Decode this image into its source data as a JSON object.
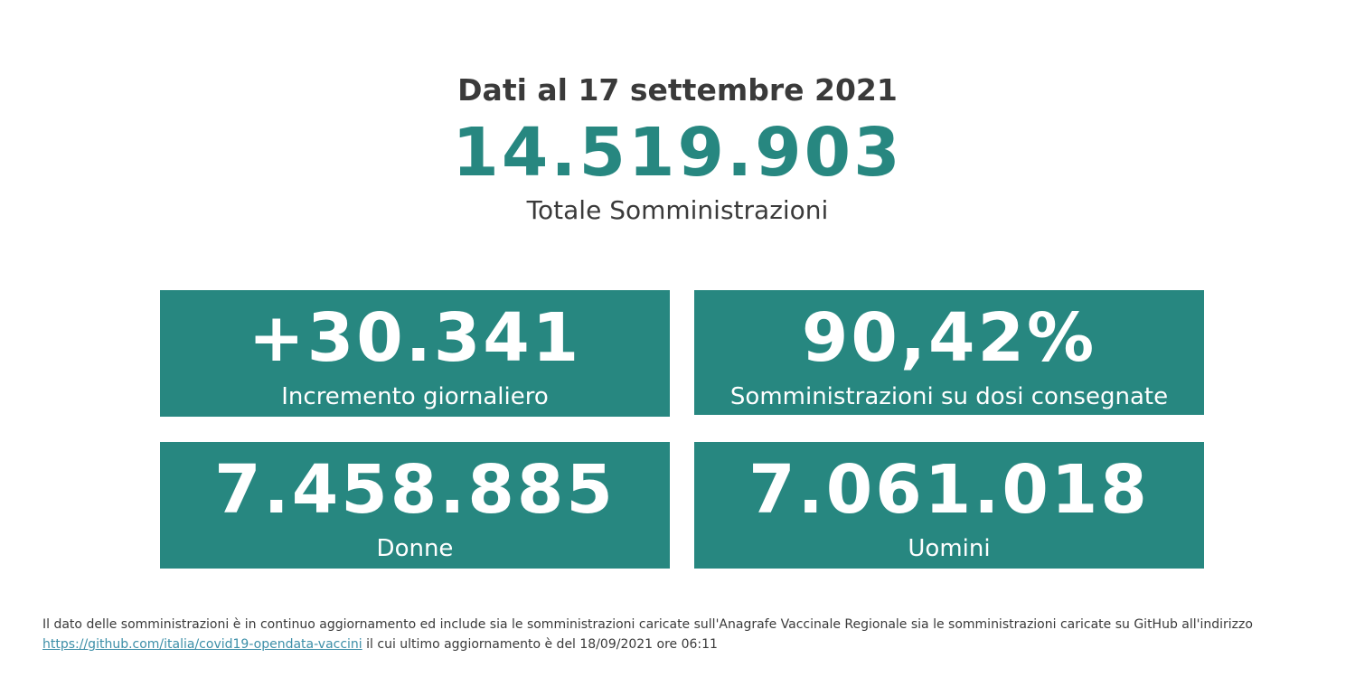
{
  "header": {
    "date_title": "Dati al 17 settembre 2021",
    "total_value": "14.519.903",
    "total_label": "Totale Somministrazioni"
  },
  "cards": {
    "increment": {
      "value": "+30.341",
      "label": "Incremento giornaliero"
    },
    "ratio": {
      "value": "90,42%",
      "label": "Somministrazioni su dosi consegnate"
    },
    "women": {
      "value": "7.458.885",
      "label": "Donne"
    },
    "men": {
      "value": "7.061.018",
      "label": "Uomini"
    }
  },
  "footnote": {
    "text_before": "Il dato delle somministrazioni è in continuo aggiornamento ed include sia le somministrazioni caricate sull'Anagrafe Vaccinale Regionale sia le somministrazioni caricate su GitHub all'indirizzo",
    "link_text": "https://github.com/italia/covid19-opendata-vaccini",
    "text_after": "il cui ultimo aggiornamento è del 18/09/2021 ore 06:11"
  },
  "colors": {
    "accent": "#278780",
    "text": "#3a3a3a",
    "link": "#3d8fa8",
    "background": "#ffffff"
  }
}
